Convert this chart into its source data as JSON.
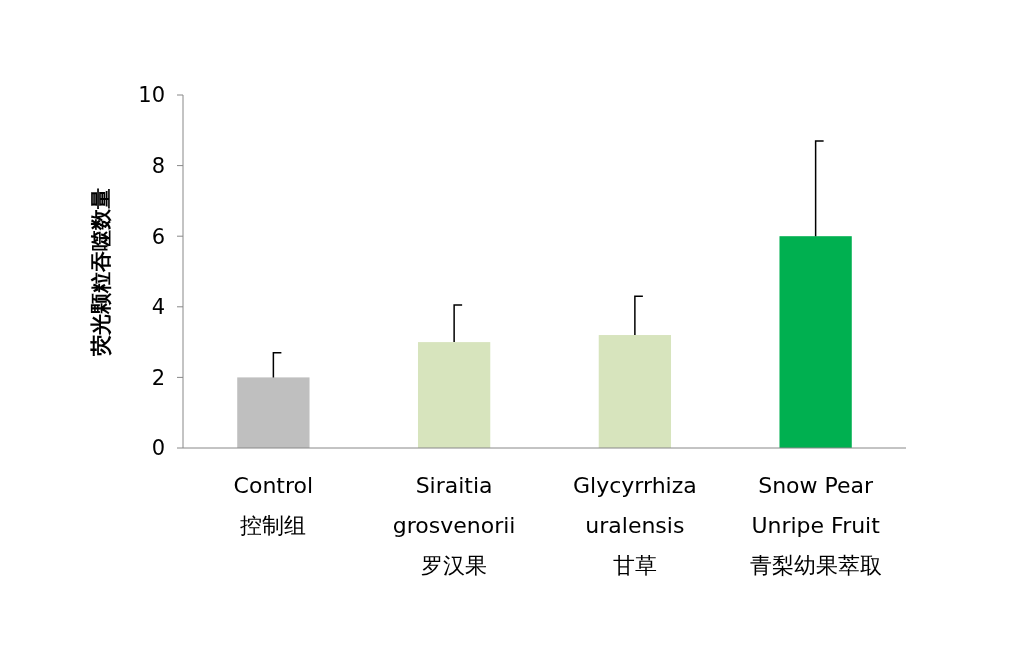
{
  "chart_data": {
    "type": "bar",
    "ylabel": "荧光颗粒吞噬数量",
    "categories": [
      "Control\n控制组",
      "Siraitia\ngrosvenorii\n罗汉果",
      "Glycyrrhiza\nuralensis\n甘草",
      "Snow Pear\nUnripe Fruit\n青梨幼果萃取"
    ],
    "values": [
      2,
      3.0,
      3.2,
      6.0
    ],
    "colors": [
      "#bfbfbf",
      "#d7e4bd",
      "#d7e4bd",
      "#00b050"
    ],
    "errors": [
      [
        2,
        2.7
      ],
      [
        3.0,
        4.05
      ],
      [
        3.2,
        4.3
      ],
      [
        6.0,
        8.7
      ]
    ],
    "ylim": [
      0,
      10
    ],
    "yticks": [
      0,
      2,
      4,
      6,
      8,
      10
    ],
    "grid": false
  }
}
